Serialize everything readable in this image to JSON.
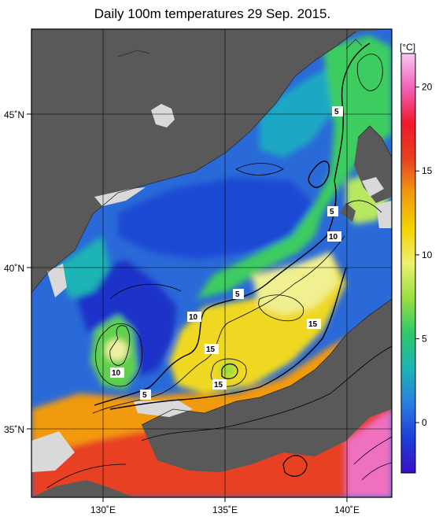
{
  "title": "Daily 100m temperatures 29 Sep. 2015.",
  "colorbar": {
    "unit": "[°C]",
    "ticks": [
      "20",
      "15",
      "10",
      "5",
      "0"
    ],
    "range": [
      -3,
      22
    ],
    "stops": [
      "#3a10c8",
      "#1e3cd8",
      "#2a7fe0",
      "#1ab4b4",
      "#2ec86a",
      "#98e040",
      "#eef070",
      "#f4d200",
      "#f29a10",
      "#e84020",
      "#f01828",
      "#f060b8",
      "#f8c8f0"
    ]
  },
  "axes": {
    "lat_labels": [
      "45˚N",
      "40˚N",
      "35˚N"
    ],
    "lon_labels": [
      "130˚E",
      "135˚E",
      "140˚E"
    ]
  },
  "contour_labels": [
    {
      "text": "5"
    },
    {
      "text": "5"
    },
    {
      "text": "10"
    },
    {
      "text": "5"
    },
    {
      "text": "10"
    },
    {
      "text": "15"
    },
    {
      "text": "15"
    },
    {
      "text": "10"
    },
    {
      "text": "15"
    },
    {
      "text": "5"
    },
    {
      "text": "5"
    }
  ],
  "colors": {
    "land": "#595959",
    "no_data": "#d9d9d9"
  }
}
